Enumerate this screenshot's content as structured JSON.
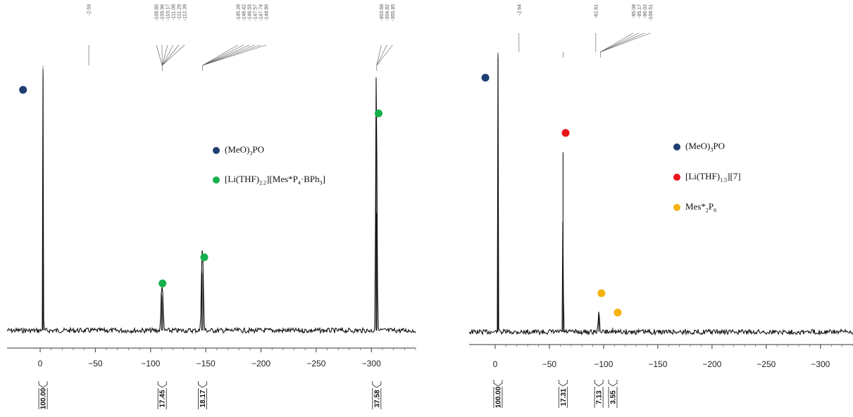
{
  "colors": {
    "navy": "#1f3f73",
    "green": "#14b04c",
    "red": "#e8151b",
    "orange": "#f5b20c",
    "spectrum": "#111111"
  },
  "chart_data": [
    {
      "type": "line",
      "title": "",
      "xlabel": "",
      "ylabel": "",
      "xlim": [
        30,
        -340
      ],
      "xticks": [
        0,
        -50,
        -100,
        -150,
        -200,
        -250,
        -300
      ],
      "tick_labels": [
        "0",
        "−50",
        "−100",
        "−150",
        "−200",
        "−250",
        "−300"
      ],
      "peaks": [
        {
          "ppm": -2.59,
          "height": 1.0,
          "width": 0.5
        },
        {
          "ppm": -109.9,
          "height": 0.14,
          "width": 1.2
        },
        {
          "ppm": -110.9,
          "height": 0.13,
          "width": 1.2
        },
        {
          "ppm": -146.4,
          "height": 0.23,
          "width": 1.3
        },
        {
          "ppm": -147.4,
          "height": 0.22,
          "width": 1.3
        },
        {
          "ppm": -304.2,
          "height": 0.8,
          "width": 1.0
        },
        {
          "ppm": -304.9,
          "height": 0.45,
          "width": 1.0
        }
      ],
      "peak_label_groups": [
        {
          "labels": [
            "-2.59"
          ],
          "target_ppm": -2.59,
          "pos": 0.2
        },
        {
          "labels": [
            "-108.85",
            "-109.96",
            "-110.17",
            "-111.08",
            "-111.29",
            "-112.39"
          ],
          "target_ppm": -110.5,
          "pos": 0.4
        },
        {
          "labels": [
            "-145.28",
            "-146.42",
            "-146.59",
            "-147.57",
            "-147.74",
            "-148.89"
          ],
          "target_ppm": -147.0,
          "pos": 0.6
        },
        {
          "labels": [
            "-303.68",
            "-304.82",
            "-305.95"
          ],
          "target_ppm": -304.8,
          "pos": 0.93
        }
      ],
      "integrals": [
        {
          "label": "100.00",
          "ppm": -2.6
        },
        {
          "label": "17.45",
          "ppm": -110.5
        },
        {
          "label": "18.17",
          "ppm": -147.0
        },
        {
          "label": "37.58",
          "ppm": -304.8
        }
      ],
      "markers": [
        {
          "ppm": 15.5,
          "level": 0.92,
          "color": "navy"
        },
        {
          "ppm": -110.8,
          "level": 0.18,
          "color": "green"
        },
        {
          "ppm": -148.6,
          "level": 0.28,
          "color": "green"
        },
        {
          "ppm": -306.5,
          "level": 0.83,
          "color": "green"
        }
      ]
    },
    {
      "type": "line",
      "title": "",
      "xlabel": "",
      "ylabel": "",
      "xlim": [
        24,
        -330
      ],
      "xticks": [
        0,
        -50,
        -100,
        -150,
        -200,
        -250,
        -300
      ],
      "tick_labels": [
        "0",
        "−50",
        "−100",
        "−150",
        "−200",
        "−250",
        "−300"
      ],
      "peaks": [
        {
          "ppm": -2.64,
          "height": 1.0,
          "width": 0.5
        },
        {
          "ppm": -62.61,
          "height": 0.65,
          "width": 0.5
        },
        {
          "ppm": -95.6,
          "height": 0.065,
          "width": 1.5
        },
        {
          "ppm": -108.5,
          "height": 0.015,
          "width": 1.0
        }
      ],
      "peak_label_groups": [
        {
          "labels": [
            "-2.64"
          ],
          "target_ppm": -2.64,
          "pos": 0.13
        },
        {
          "labels": [
            "-62.61"
          ],
          "target_ppm": -62.61,
          "pos": 0.33
        },
        {
          "labels": [
            "-95.08",
            "-95.17",
            "-96.02",
            "-108.51"
          ],
          "target_ppm": -97.0,
          "pos": 0.45
        }
      ],
      "integrals": [
        {
          "label": "100.00",
          "ppm": -2.6
        },
        {
          "label": "17.31",
          "ppm": -62.6
        },
        {
          "label": "7.13",
          "ppm": -95.6
        },
        {
          "label": "3.55",
          "ppm": -108.5
        }
      ],
      "markers": [
        {
          "ppm": 9.0,
          "level": 0.92,
          "color": "navy"
        },
        {
          "ppm": -65.0,
          "level": 0.72,
          "color": "red"
        },
        {
          "ppm": -98.0,
          "level": 0.14,
          "color": "orange"
        },
        {
          "ppm": -113.0,
          "level": 0.07,
          "color": "orange"
        }
      ]
    }
  ],
  "legends": [
    {
      "items": [
        {
          "color": "navy",
          "parts": [
            "(MeO)",
            "3",
            "PO"
          ]
        },
        {
          "color": "green",
          "parts": [
            "[Li(THF)",
            "2.2",
            "][Mes*P",
            "4",
            "·BPh",
            "3",
            "]"
          ]
        }
      ]
    },
    {
      "items": [
        {
          "color": "navy",
          "parts": [
            "(MeO)",
            "3",
            "PO"
          ]
        },
        {
          "color": "red",
          "parts": [
            "[Li(THF)",
            "1.5",
            "][7]"
          ]
        },
        {
          "color": "orange",
          "parts": [
            "Mes*",
            "2",
            "P",
            "6",
            ""
          ]
        }
      ]
    }
  ]
}
